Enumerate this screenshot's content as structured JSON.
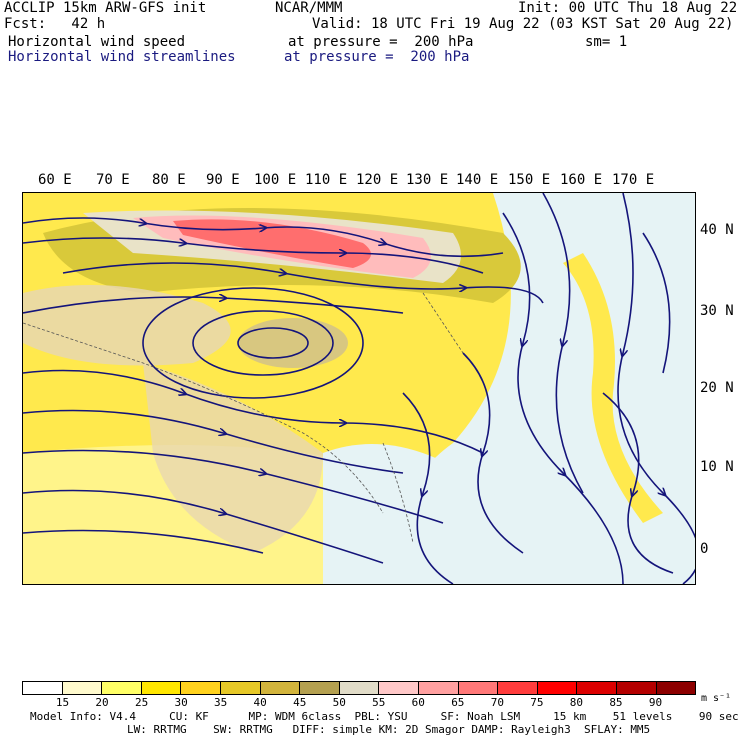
{
  "header": {
    "model_line": "ACCLIP 15km ARW-GFS init",
    "center": "NCAR/MMM",
    "init": "Init: 00 UTC Thu 18 Aug 22",
    "fcst": "Fcst:   42 h",
    "valid": "Valid: 18 UTC Fri 19 Aug 22 (03 KST Sat 20 Aug 22)",
    "field1": "Horizontal wind speed",
    "field1_level": "at pressure =  200 hPa",
    "sm": "sm= 1",
    "field2": "Horizontal wind streamlines",
    "field2_level": "at pressure =  200 hPa"
  },
  "lon_labels": [
    "60 E",
    "70 E",
    "80 E",
    "90 E",
    "100 E",
    "110 E",
    "120 E",
    "130 E",
    "140 E",
    "150 E",
    "160 E",
    "170 E"
  ],
  "lat_labels": [
    "40 N",
    "30 N",
    "20 N",
    "10 N",
    "0"
  ],
  "colorbar": {
    "labels": [
      "15",
      "20",
      "25",
      "30",
      "35",
      "40",
      "45",
      "50",
      "55",
      "60",
      "65",
      "70",
      "75",
      "80",
      "85",
      "90"
    ],
    "unit": "m s⁻¹",
    "colors": [
      "#ffffff",
      "#fffacd",
      "#ffff66",
      "#ffe600",
      "#ffd21e",
      "#e6c828",
      "#d2b43c",
      "#b4a050",
      "#e1dcc8",
      "#ffc8c8",
      "#ffa0a0",
      "#ff7878",
      "#ff3c3c",
      "#ff0000",
      "#dc0000",
      "#b40000",
      "#8c0000"
    ]
  },
  "model_info": {
    "line1": "Model Info: V4.4     CU: KF      MP: WDM 6class  PBL: YSU     SF: Noah LSM     15 km    51 levels    90 sec",
    "line2": "LW: RRTMG    SW: RRTMG   DIFF: simple KM: 2D Smagor DAMP: Rayleigh3  SFLAY: MM5"
  }
}
